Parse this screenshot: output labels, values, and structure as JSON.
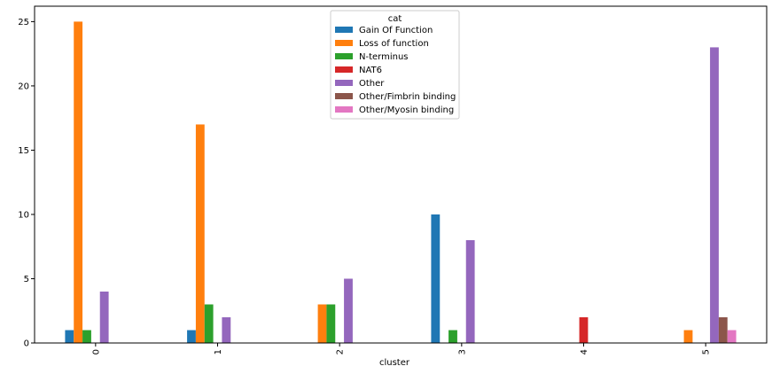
{
  "chart_data": {
    "type": "bar",
    "title": "",
    "xlabel": "cluster",
    "ylabel": "",
    "categories": [
      "0",
      "1",
      "2",
      "3",
      "4",
      "5"
    ],
    "ylim": [
      0,
      26.2
    ],
    "yticks": [
      0,
      5,
      10,
      15,
      20,
      25
    ],
    "grid": false,
    "legend": {
      "title": "cat",
      "placement": "upper-center"
    },
    "series": [
      {
        "name": "Gain Of Function",
        "color": "#1f77b4",
        "values": [
          1,
          1,
          0,
          10,
          0,
          0
        ]
      },
      {
        "name": "Loss of function",
        "color": "#ff7f0e",
        "values": [
          25,
          17,
          3,
          0,
          0,
          1
        ]
      },
      {
        "name": "N-terminus",
        "color": "#2ca02c",
        "values": [
          1,
          3,
          3,
          1,
          0,
          0
        ]
      },
      {
        "name": "NAT6",
        "color": "#d62728",
        "values": [
          0,
          0,
          0,
          0,
          2,
          0
        ]
      },
      {
        "name": "Other",
        "color": "#9467bd",
        "values": [
          4,
          2,
          5,
          8,
          0,
          23
        ]
      },
      {
        "name": "Other/Fimbrin binding",
        "color": "#8c564b",
        "values": [
          0,
          0,
          0,
          0,
          0,
          2
        ]
      },
      {
        "name": "Other/Myosin binding",
        "color": "#e377c2",
        "values": [
          0,
          0,
          0,
          0,
          0,
          1
        ]
      }
    ]
  }
}
